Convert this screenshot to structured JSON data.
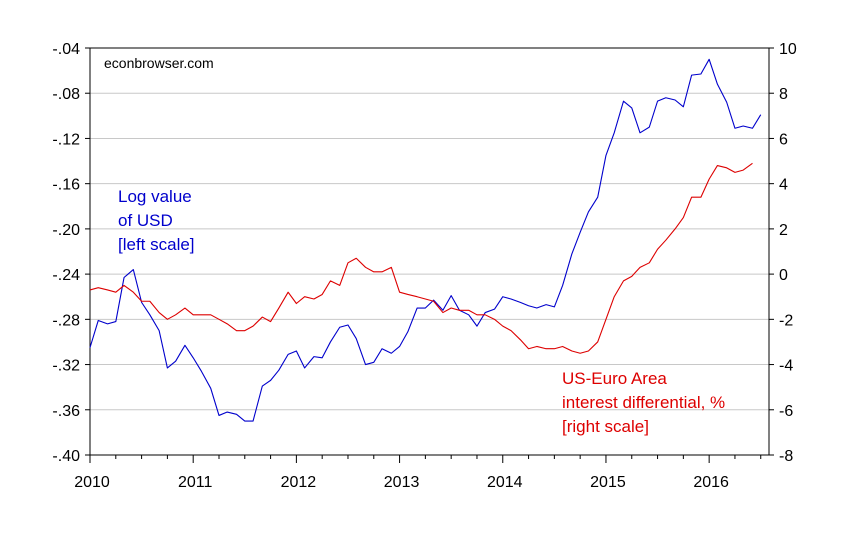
{
  "chart_data": {
    "type": "line",
    "watermark": "econbrowser.com",
    "x_range": [
      2010.0,
      2016.58
    ],
    "x_ticks": [
      "2010",
      "2011",
      "2012",
      "2013",
      "2014",
      "2015",
      "2016"
    ],
    "y_left": {
      "range": [
        -0.4,
        -0.04
      ],
      "ticks": [
        "-.04",
        "-.08",
        "-.12",
        "-.16",
        "-.20",
        "-.24",
        "-.28",
        "-.32",
        "-.36",
        "-.40"
      ]
    },
    "y_right": {
      "range": [
        -8,
        10
      ],
      "ticks": [
        "10",
        "8",
        "6",
        "4",
        "2",
        "0",
        "-2",
        "-4",
        "-6",
        "-8"
      ]
    },
    "grid": "horizontal",
    "annotations": {
      "usd": [
        "Log value",
        "of USD",
        "[left scale]"
      ],
      "diff": [
        "US-Euro Area",
        "interest differential, %",
        "[right scale]"
      ]
    },
    "colors": {
      "usd": "#0000cc",
      "diff": "#dd0000",
      "grid": "#c8c8c8"
    },
    "series": [
      {
        "axis": "left",
        "color": "#0000cc",
        "points": [
          [
            2010.0,
            -0.305
          ],
          [
            2010.08,
            -0.281
          ],
          [
            2010.17,
            -0.284
          ],
          [
            2010.25,
            -0.282
          ],
          [
            2010.33,
            -0.243
          ],
          [
            2010.42,
            -0.236
          ],
          [
            2010.5,
            -0.265
          ],
          [
            2010.58,
            -0.276
          ],
          [
            2010.67,
            -0.29
          ],
          [
            2010.75,
            -0.323
          ],
          [
            2010.83,
            -0.317
          ],
          [
            2010.92,
            -0.303
          ],
          [
            2011.0,
            -0.314
          ],
          [
            2011.08,
            -0.326
          ],
          [
            2011.17,
            -0.341
          ],
          [
            2011.25,
            -0.365
          ],
          [
            2011.33,
            -0.362
          ],
          [
            2011.42,
            -0.364
          ],
          [
            2011.5,
            -0.37
          ],
          [
            2011.58,
            -0.37
          ],
          [
            2011.67,
            -0.339
          ],
          [
            2011.75,
            -0.334
          ],
          [
            2011.83,
            -0.325
          ],
          [
            2011.92,
            -0.311
          ],
          [
            2012.0,
            -0.308
          ],
          [
            2012.08,
            -0.323
          ],
          [
            2012.17,
            -0.313
          ],
          [
            2012.25,
            -0.314
          ],
          [
            2012.33,
            -0.3
          ],
          [
            2012.42,
            -0.287
          ],
          [
            2012.5,
            -0.285
          ],
          [
            2012.58,
            -0.297
          ],
          [
            2012.67,
            -0.32
          ],
          [
            2012.75,
            -0.318
          ],
          [
            2012.83,
            -0.306
          ],
          [
            2012.92,
            -0.31
          ],
          [
            2013.0,
            -0.304
          ],
          [
            2013.08,
            -0.291
          ],
          [
            2013.17,
            -0.27
          ],
          [
            2013.25,
            -0.27
          ],
          [
            2013.33,
            -0.263
          ],
          [
            2013.42,
            -0.272
          ],
          [
            2013.5,
            -0.259
          ],
          [
            2013.58,
            -0.272
          ],
          [
            2013.67,
            -0.276
          ],
          [
            2013.75,
            -0.286
          ],
          [
            2013.83,
            -0.274
          ],
          [
            2013.92,
            -0.271
          ],
          [
            2014.0,
            -0.26
          ],
          [
            2014.08,
            -0.262
          ],
          [
            2014.17,
            -0.265
          ],
          [
            2014.25,
            -0.268
          ],
          [
            2014.33,
            -0.27
          ],
          [
            2014.42,
            -0.267
          ],
          [
            2014.5,
            -0.269
          ],
          [
            2014.58,
            -0.25
          ],
          [
            2014.67,
            -0.222
          ],
          [
            2014.75,
            -0.203
          ],
          [
            2014.83,
            -0.185
          ],
          [
            2014.92,
            -0.172
          ],
          [
            2015.0,
            -0.135
          ],
          [
            2015.08,
            -0.115
          ],
          [
            2015.17,
            -0.087
          ],
          [
            2015.25,
            -0.093
          ],
          [
            2015.33,
            -0.115
          ],
          [
            2015.42,
            -0.11
          ],
          [
            2015.5,
            -0.087
          ],
          [
            2015.58,
            -0.084
          ],
          [
            2015.67,
            -0.086
          ],
          [
            2015.75,
            -0.092
          ],
          [
            2015.83,
            -0.064
          ],
          [
            2015.92,
            -0.063
          ],
          [
            2016.0,
            -0.05
          ],
          [
            2016.08,
            -0.072
          ],
          [
            2016.17,
            -0.088
          ],
          [
            2016.25,
            -0.111
          ],
          [
            2016.33,
            -0.109
          ],
          [
            2016.42,
            -0.111
          ],
          [
            2016.5,
            -0.099
          ]
        ]
      },
      {
        "axis": "right",
        "color": "#dd0000",
        "points": [
          [
            2010.0,
            -0.7
          ],
          [
            2010.08,
            -0.6
          ],
          [
            2010.17,
            -0.7
          ],
          [
            2010.25,
            -0.8
          ],
          [
            2010.33,
            -0.5
          ],
          [
            2010.42,
            -0.8
          ],
          [
            2010.5,
            -1.2
          ],
          [
            2010.58,
            -1.2
          ],
          [
            2010.67,
            -1.7
          ],
          [
            2010.75,
            -2.0
          ],
          [
            2010.83,
            -1.8
          ],
          [
            2010.92,
            -1.5
          ],
          [
            2011.0,
            -1.8
          ],
          [
            2011.08,
            -1.8
          ],
          [
            2011.17,
            -1.8
          ],
          [
            2011.25,
            -2.0
          ],
          [
            2011.33,
            -2.2
          ],
          [
            2011.42,
            -2.5
          ],
          [
            2011.5,
            -2.5
          ],
          [
            2011.58,
            -2.3
          ],
          [
            2011.67,
            -1.9
          ],
          [
            2011.75,
            -2.1
          ],
          [
            2011.83,
            -1.5
          ],
          [
            2011.92,
            -0.8
          ],
          [
            2012.0,
            -1.3
          ],
          [
            2012.08,
            -1.0
          ],
          [
            2012.17,
            -1.1
          ],
          [
            2012.25,
            -0.9
          ],
          [
            2012.33,
            -0.3
          ],
          [
            2012.42,
            -0.5
          ],
          [
            2012.5,
            0.5
          ],
          [
            2012.58,
            0.7
          ],
          [
            2012.67,
            0.3
          ],
          [
            2012.75,
            0.1
          ],
          [
            2012.83,
            0.1
          ],
          [
            2012.92,
            0.3
          ],
          [
            2013.0,
            -0.8
          ],
          [
            2013.08,
            -0.9
          ],
          [
            2013.17,
            -1.0
          ],
          [
            2013.25,
            -1.1
          ],
          [
            2013.33,
            -1.2
          ],
          [
            2013.42,
            -1.7
          ],
          [
            2013.5,
            -1.5
          ],
          [
            2013.58,
            -1.6
          ],
          [
            2013.67,
            -1.6
          ],
          [
            2013.75,
            -1.8
          ],
          [
            2013.83,
            -1.8
          ],
          [
            2013.92,
            -2.0
          ],
          [
            2014.0,
            -2.3
          ],
          [
            2014.08,
            -2.5
          ],
          [
            2014.17,
            -2.9
          ],
          [
            2014.25,
            -3.3
          ],
          [
            2014.33,
            -3.2
          ],
          [
            2014.42,
            -3.3
          ],
          [
            2014.5,
            -3.3
          ],
          [
            2014.58,
            -3.2
          ],
          [
            2014.67,
            -3.4
          ],
          [
            2014.75,
            -3.5
          ],
          [
            2014.83,
            -3.4
          ],
          [
            2014.92,
            -3.0
          ],
          [
            2015.0,
            -2.0
          ],
          [
            2015.08,
            -1.0
          ],
          [
            2015.17,
            -0.3
          ],
          [
            2015.25,
            -0.1
          ],
          [
            2015.33,
            0.3
          ],
          [
            2015.42,
            0.5
          ],
          [
            2015.5,
            1.1
          ],
          [
            2015.58,
            1.5
          ],
          [
            2015.67,
            2.0
          ],
          [
            2015.75,
            2.5
          ],
          [
            2015.83,
            3.4
          ],
          [
            2015.92,
            3.4
          ],
          [
            2016.0,
            4.2
          ],
          [
            2016.08,
            4.8
          ],
          [
            2016.17,
            4.7
          ],
          [
            2016.25,
            4.5
          ],
          [
            2016.33,
            4.6
          ],
          [
            2016.42,
            4.9
          ]
        ]
      }
    ]
  }
}
